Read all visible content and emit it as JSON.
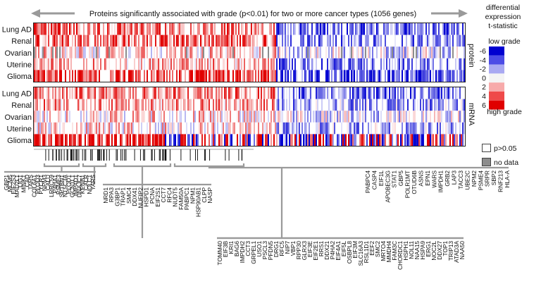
{
  "chart_data": {
    "type": "heatmap",
    "title": "Proteins significantly associated with grade (p<0.01) for two or more cancer types (1056 genes)",
    "panels": [
      {
        "name": "protein",
        "rows": [
          "Lung AD",
          "Renal",
          "Ovarian",
          "Uterine",
          "Glioma"
        ]
      },
      {
        "name": "mRNA",
        "rows": [
          "Lung AD",
          "Renal",
          "Ovarian",
          "Uterine",
          "Glioma"
        ]
      }
    ],
    "legend": {
      "title_lines": [
        "differential",
        "expression",
        "t-statistic"
      ],
      "low_label": "low grade",
      "high_label": "high grade",
      "ticks": [
        {
          "label": "-6",
          "color": "#0000d0"
        },
        {
          "label": "-4",
          "color": "#4c4ce6"
        },
        {
          "label": "-2",
          "color": "#a9a9f2"
        },
        {
          "label": "0",
          "color": "#f4f4f4"
        },
        {
          "label": "2",
          "color": "#f7aaaa"
        },
        {
          "label": "4",
          "color": "#ef4a4a"
        },
        {
          "label": "6",
          "color": "#e00000"
        }
      ],
      "p_label": "p>0.05",
      "nodata_label": "no data"
    },
    "gene_groups": [
      {
        "genes": [
          "GBP1",
          "MCM5",
          "EIF2S3",
          "MAD2L1",
          "LIG1",
          "MINK1",
          "CAD",
          "TARS",
          "COL6A1",
          "PLOD3",
          "PYCR1",
          "NPM3",
          "CALU",
          "LRRC59",
          "P4HA1",
          "PSME3",
          "SPTBN1",
          "NT5C3A",
          "PLOD1",
          "GCN1L1",
          "IMPAD1",
          "DNAJC7",
          "KPNB1",
          "CALR",
          "NOLC1",
          "YARS"
        ]
      },
      {
        "genes": [
          "NRD1",
          "RPA3",
          "G3BP1",
          "TRAP1",
          "SMC4",
          "DDX41",
          "NUFIP2",
          "HSPD1",
          "PCNA",
          "EIF2S1",
          "CCT7",
          "RFC4",
          "NUDT5",
          "FAM50A",
          "PABPC1",
          "NPM1",
          "HSP90AB1",
          "CLPP",
          "NASP"
        ]
      },
      {
        "genes": [
          "TOMM40",
          "EIF3B",
          "KRI1",
          "BAG6",
          "IMPDH2",
          "CCT3",
          "GRPEL1",
          "USO1",
          "PSCL3",
          "PFDN5",
          "DRG1",
          "RFC5",
          "NIP7",
          "VBP1",
          "RPP30",
          "GLRX3",
          "EIF3E",
          "EIF2E1",
          "RRS1",
          "DDX21",
          "P4HA2",
          "EIF4A1",
          "EIF5L",
          "OSBPL8",
          "EIF3M",
          "SLC16A3",
          "RSL1D1",
          "EEF2",
          "SMC2",
          "MRTO4",
          "MMDH4",
          "FAM3C",
          "CHORDC1",
          "HSPH1",
          "NOL11",
          "NAA15",
          "HSPA9",
          "ERG1",
          "NOC2L",
          "DDX27",
          "TOP1",
          "TRIP13",
          "ATAD3A",
          "NAA50"
        ]
      },
      {
        "genes": [
          "PABPC4",
          "CASP4",
          "EIF1L",
          "APOBEC3G",
          "STAT1",
          "GBP5",
          "POLR1MT",
          "OTUD6B",
          "ASNS",
          "EPN1",
          "WARS",
          "IMPDH1",
          "GRB2",
          "LAP3",
          "TACC3",
          "UBE2C",
          "NPM2",
          "PSME4",
          "SRPR",
          "SBP2",
          "RNF213",
          "HLA-A"
        ]
      }
    ]
  }
}
